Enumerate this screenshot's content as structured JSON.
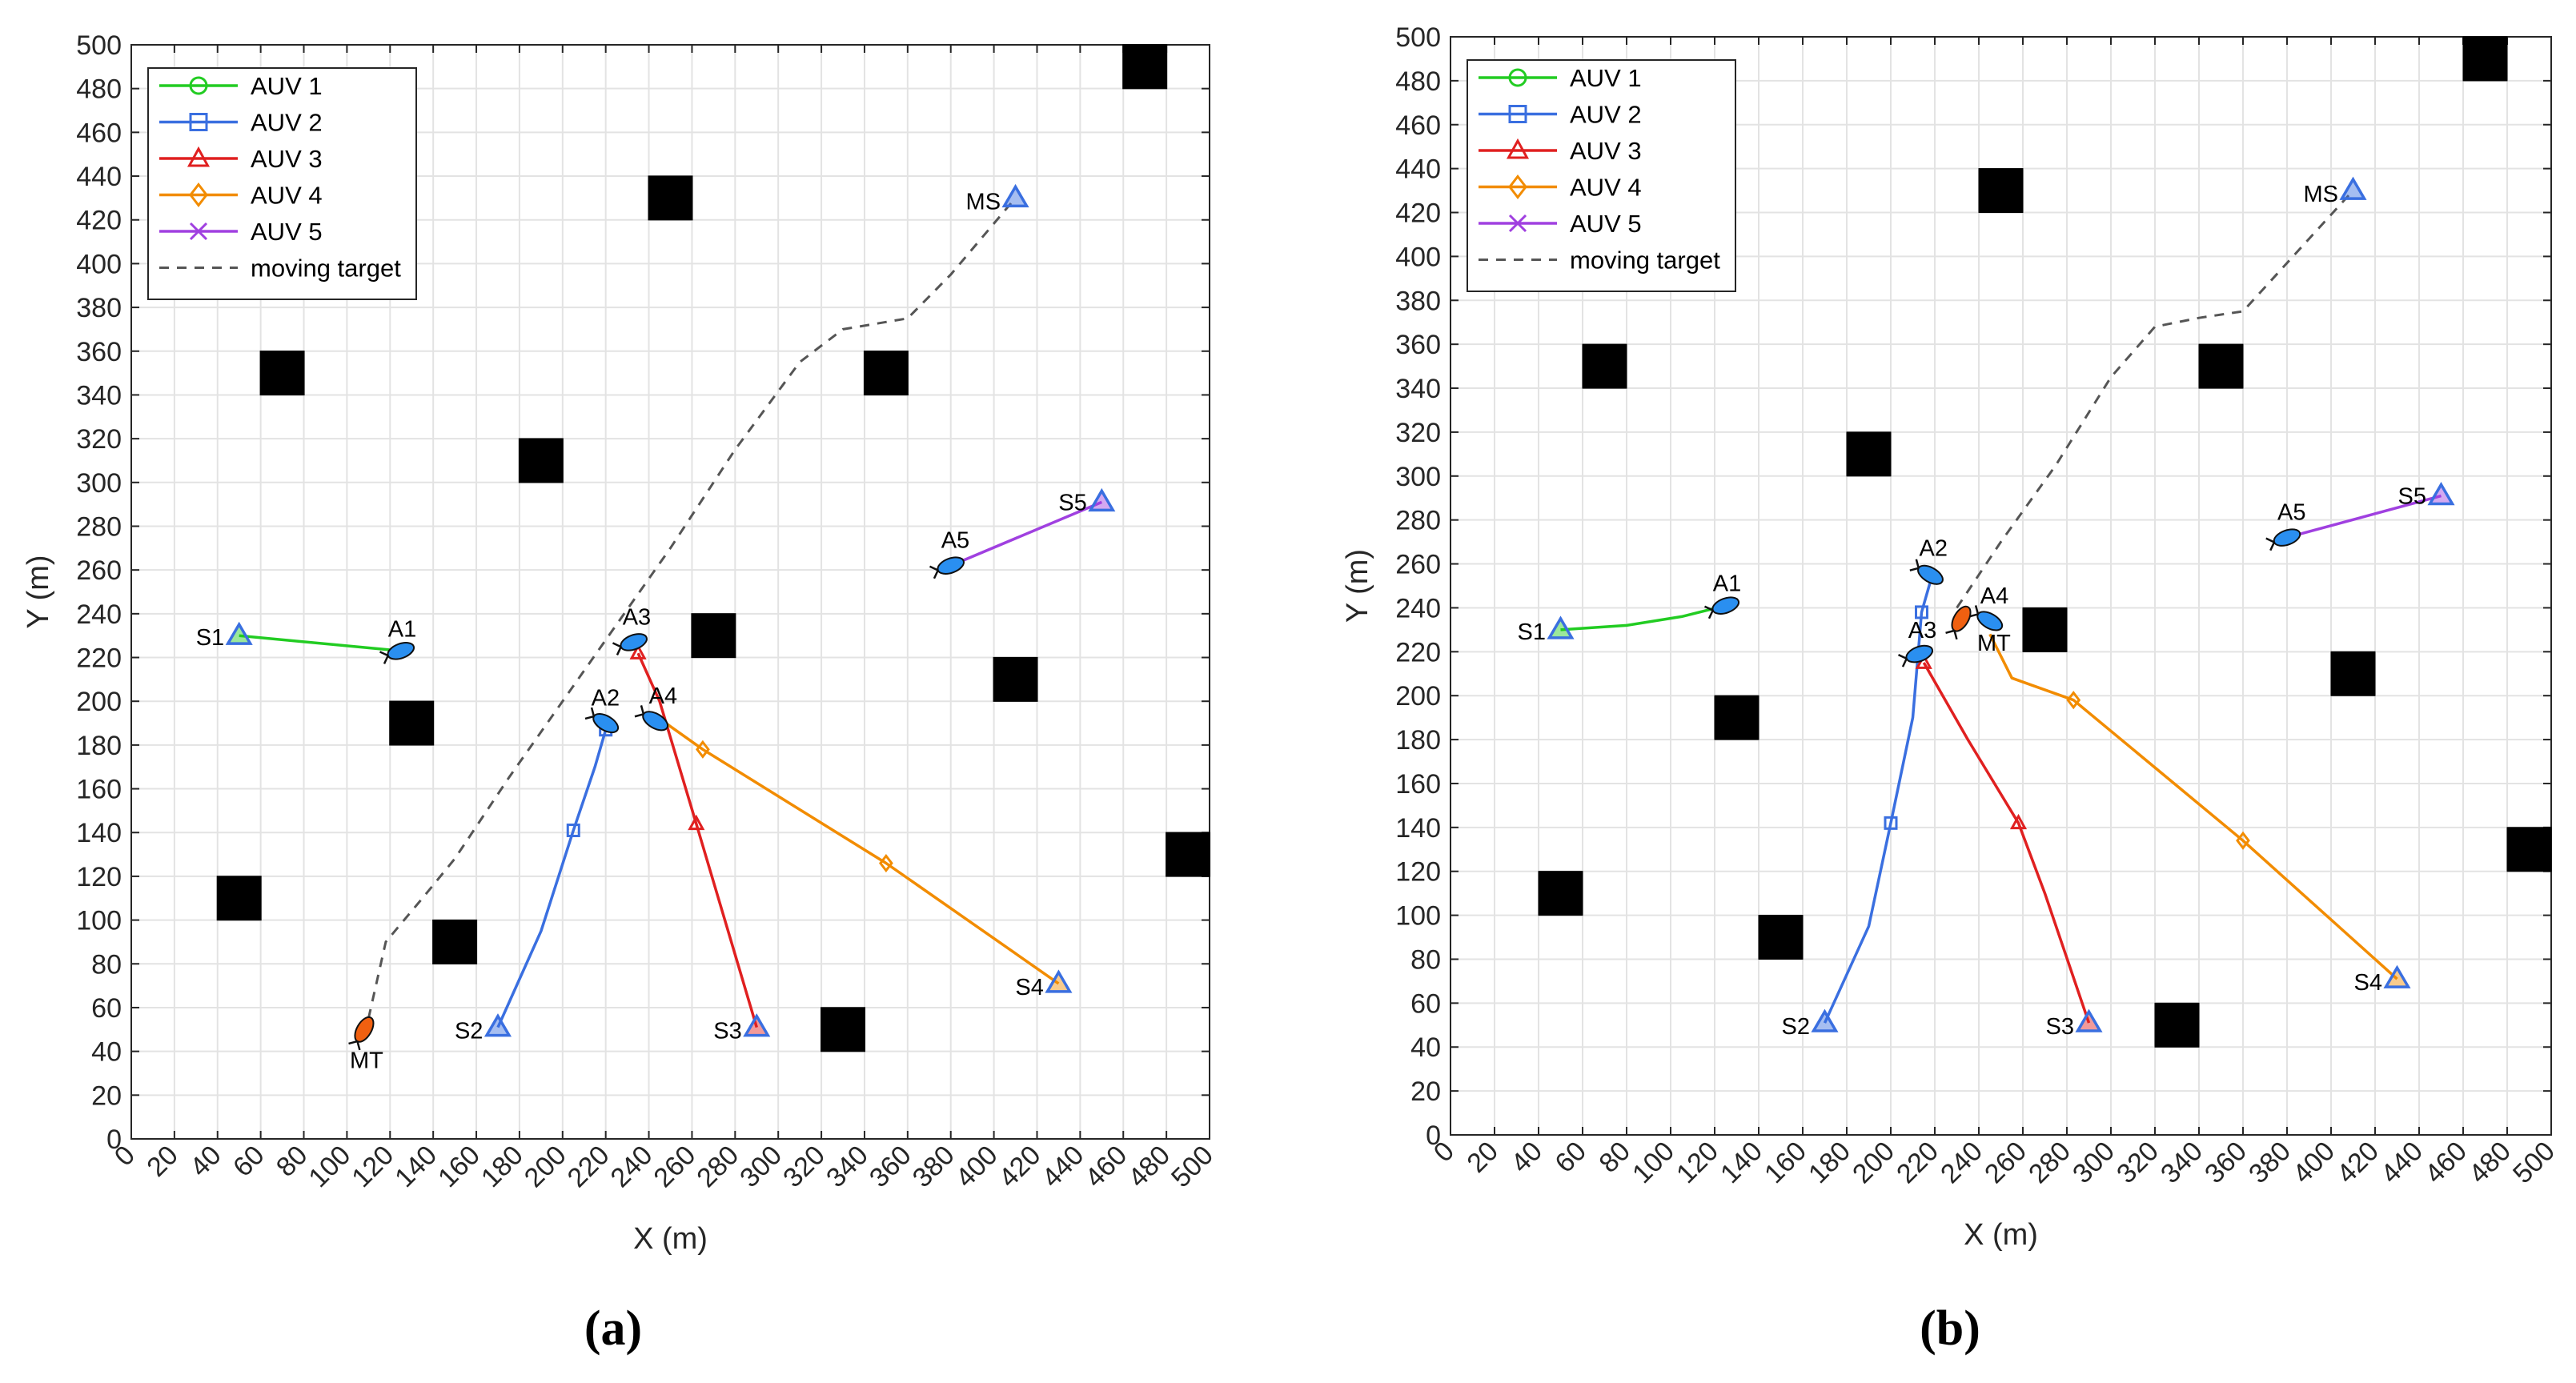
{
  "chart_data": [
    {
      "type": "line",
      "panel_label": "(a)",
      "xlabel": "X (m)",
      "ylabel": "Y (m)",
      "xlim": [
        0,
        500
      ],
      "ylim": [
        0,
        500
      ],
      "xticks": [
        0,
        20,
        40,
        60,
        80,
        100,
        120,
        140,
        160,
        180,
        200,
        220,
        240,
        260,
        280,
        300,
        320,
        340,
        360,
        380,
        400,
        420,
        440,
        460,
        480,
        500
      ],
      "yticks": [
        0,
        20,
        40,
        60,
        80,
        100,
        120,
        140,
        160,
        180,
        200,
        220,
        240,
        260,
        280,
        300,
        320,
        340,
        360,
        380,
        400,
        420,
        440,
        460,
        480,
        500
      ],
      "grid": true,
      "legend_position": "top-left",
      "series": [
        {
          "name": "AUV 1",
          "color": "#22cc22",
          "marker": "circle",
          "points": [
            [
              50,
              230
            ],
            [
              125,
              223
            ]
          ]
        },
        {
          "name": "AUV 2",
          "color": "#3a6fe0",
          "marker": "square",
          "points": [
            [
              170,
              51
            ],
            [
              190,
              95
            ],
            [
              205,
              141
            ],
            [
              215,
              170
            ],
            [
              220,
              187
            ]
          ],
          "marker_points": [
            [
              205,
              141
            ],
            [
              220,
              187
            ]
          ]
        },
        {
          "name": "AUV 3",
          "color": "#e02020",
          "marker": "triangle",
          "points": [
            [
              290,
              51
            ],
            [
              262,
              144
            ],
            [
              245,
              200
            ],
            [
              235,
              222
            ]
          ],
          "marker_points": [
            [
              262,
              144
            ],
            [
              235,
              222
            ]
          ]
        },
        {
          "name": "AUV 4",
          "color": "#f28c00",
          "marker": "diamond",
          "points": [
            [
              430,
              71
            ],
            [
              350,
              126
            ],
            [
              265,
              178
            ],
            [
              245,
              192
            ]
          ],
          "marker_points": [
            [
              350,
              126
            ],
            [
              265,
              178
            ]
          ]
        },
        {
          "name": "AUV 5",
          "color": "#a040e0",
          "marker": "x",
          "points": [
            [
              450,
              291
            ],
            [
              380,
              262
            ]
          ]
        },
        {
          "name": "moving target",
          "color": "#555555",
          "marker": "dashed",
          "points": [
            [
              110,
              55
            ],
            [
              118,
              90
            ],
            [
              135,
              110
            ],
            [
              150,
              128
            ],
            [
              175,
              165
            ],
            [
              200,
              200
            ],
            [
              225,
              235
            ],
            [
              250,
              270
            ],
            [
              280,
              315
            ],
            [
              310,
              355
            ],
            [
              330,
              370
            ],
            [
              360,
              375
            ],
            [
              380,
              395
            ],
            [
              410,
              430
            ]
          ]
        }
      ],
      "obstacles": [
        [
          470,
          490
        ],
        [
          250,
          430
        ],
        [
          70,
          350
        ],
        [
          350,
          350
        ],
        [
          190,
          310
        ],
        [
          270,
          230
        ],
        [
          410,
          210
        ],
        [
          130,
          190
        ],
        [
          490,
          130
        ],
        [
          50,
          110
        ],
        [
          150,
          90
        ],
        [
          330,
          50
        ]
      ],
      "start_markers": [
        {
          "label": "S1",
          "x": 50,
          "y": 230,
          "color": "#22cc22"
        },
        {
          "label": "S2",
          "x": 170,
          "y": 51,
          "color": "#3a6fe0"
        },
        {
          "label": "S3",
          "x": 290,
          "y": 51,
          "color": "#e02020"
        },
        {
          "label": "S4",
          "x": 430,
          "y": 71,
          "color": "#f28c00"
        },
        {
          "label": "S5",
          "x": 450,
          "y": 291,
          "color": "#a040e0"
        },
        {
          "label": "MS",
          "x": 410,
          "y": 430,
          "color": "#3a6fe0"
        }
      ],
      "vehicles": [
        {
          "label": "A1",
          "x": 125,
          "y": 223
        },
        {
          "label": "A2",
          "x": 220,
          "y": 190
        },
        {
          "label": "A3",
          "x": 233,
          "y": 227
        },
        {
          "label": "A4",
          "x": 243,
          "y": 191
        },
        {
          "label": "A5",
          "x": 380,
          "y": 262
        },
        {
          "label": "MT",
          "x": 108,
          "y": 50
        }
      ]
    },
    {
      "type": "line",
      "panel_label": "(b)",
      "xlabel": "X (m)",
      "ylabel": "Y (m)",
      "xlim": [
        0,
        500
      ],
      "ylim": [
        0,
        500
      ],
      "xticks": [
        0,
        20,
        40,
        60,
        80,
        100,
        120,
        140,
        160,
        180,
        200,
        220,
        240,
        260,
        280,
        300,
        320,
        340,
        360,
        380,
        400,
        420,
        440,
        460,
        480,
        500
      ],
      "yticks": [
        0,
        20,
        40,
        60,
        80,
        100,
        120,
        140,
        160,
        180,
        200,
        220,
        240,
        260,
        280,
        300,
        320,
        340,
        360,
        380,
        400,
        420,
        440,
        460,
        480,
        500
      ],
      "grid": true,
      "legend_position": "top-left",
      "series": [
        {
          "name": "AUV 1",
          "color": "#22cc22",
          "marker": "circle",
          "points": [
            [
              50,
              230
            ],
            [
              80,
              232
            ],
            [
              105,
              236
            ],
            [
              125,
              241
            ]
          ]
        },
        {
          "name": "AUV 2",
          "color": "#3a6fe0",
          "marker": "square",
          "points": [
            [
              170,
              51
            ],
            [
              190,
              95
            ],
            [
              200,
              142
            ],
            [
              210,
              190
            ],
            [
              214,
              238
            ],
            [
              218,
              252
            ]
          ],
          "marker_points": [
            [
              200,
              142
            ],
            [
              214,
              238
            ]
          ]
        },
        {
          "name": "AUV 3",
          "color": "#e02020",
          "marker": "triangle",
          "points": [
            [
              290,
              51
            ],
            [
              270,
              110
            ],
            [
              258,
              142
            ],
            [
              235,
              180
            ],
            [
              215,
              215
            ]
          ],
          "marker_points": [
            [
              258,
              142
            ],
            [
              215,
              215
            ]
          ]
        },
        {
          "name": "AUV 4",
          "color": "#f28c00",
          "marker": "diamond",
          "points": [
            [
              430,
              71
            ],
            [
              360,
              134
            ],
            [
              283,
              198
            ],
            [
              255,
              208
            ],
            [
              245,
              228
            ]
          ],
          "marker_points": [
            [
              360,
              134
            ],
            [
              283,
              198
            ]
          ]
        },
        {
          "name": "AUV 5",
          "color": "#a040e0",
          "marker": "x",
          "points": [
            [
              450,
              291
            ],
            [
              380,
              272
            ]
          ]
        },
        {
          "name": "moving target",
          "color": "#555555",
          "marker": "dashed",
          "points": [
            [
              230,
              240
            ],
            [
              250,
              270
            ],
            [
              275,
              305
            ],
            [
              300,
              345
            ],
            [
              320,
              368
            ],
            [
              340,
              372
            ],
            [
              360,
              375
            ],
            [
              380,
              397
            ],
            [
              410,
              430
            ]
          ]
        }
      ],
      "obstacles": [
        [
          470,
          490
        ],
        [
          250,
          430
        ],
        [
          70,
          350
        ],
        [
          350,
          350
        ],
        [
          190,
          310
        ],
        [
          270,
          230
        ],
        [
          410,
          210
        ],
        [
          130,
          190
        ],
        [
          490,
          130
        ],
        [
          50,
          110
        ],
        [
          150,
          90
        ],
        [
          330,
          50
        ]
      ],
      "start_markers": [
        {
          "label": "S1",
          "x": 50,
          "y": 230,
          "color": "#22cc22"
        },
        {
          "label": "S2",
          "x": 170,
          "y": 51,
          "color": "#3a6fe0"
        },
        {
          "label": "S3",
          "x": 290,
          "y": 51,
          "color": "#e02020"
        },
        {
          "label": "S4",
          "x": 430,
          "y": 71,
          "color": "#f28c00"
        },
        {
          "label": "S5",
          "x": 450,
          "y": 291,
          "color": "#a040e0"
        },
        {
          "label": "MS",
          "x": 410,
          "y": 430,
          "color": "#3a6fe0"
        }
      ],
      "vehicles": [
        {
          "label": "A1",
          "x": 125,
          "y": 241
        },
        {
          "label": "A2",
          "x": 218,
          "y": 255
        },
        {
          "label": "A3",
          "x": 213,
          "y": 219
        },
        {
          "label": "A4",
          "x": 245,
          "y": 234
        },
        {
          "label": "A5",
          "x": 380,
          "y": 272
        },
        {
          "label": "MT",
          "x": 232,
          "y": 235
        }
      ]
    }
  ]
}
